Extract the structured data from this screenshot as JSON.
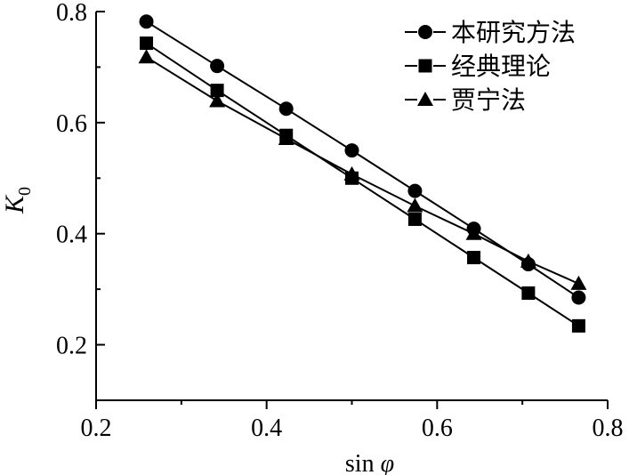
{
  "chart_data": {
    "type": "line",
    "title": "",
    "xlabel": {
      "prefix": "sin ",
      "symbol": "φ"
    },
    "ylabel": {
      "symbol": "K",
      "subscript": "0"
    },
    "xlim": [
      0.2,
      0.8
    ],
    "ylim": [
      0.1,
      0.8
    ],
    "xticks": [
      0.2,
      0.4,
      0.6,
      0.8
    ],
    "yticks": [
      0.2,
      0.4,
      0.6,
      0.8
    ],
    "x_minor_ticks": [
      0.3,
      0.5,
      0.7
    ],
    "y_minor_ticks": [
      0.1,
      0.3,
      0.5,
      0.7
    ],
    "legend_position": "top-right",
    "x": [
      0.259,
      0.342,
      0.423,
      0.5,
      0.574,
      0.643,
      0.707,
      0.766
    ],
    "series": [
      {
        "name": "本研究方法",
        "marker": "circle",
        "values": [
          0.782,
          0.702,
          0.625,
          0.55,
          0.477,
          0.409,
          0.345,
          0.285
        ]
      },
      {
        "name": "经典理论",
        "marker": "square",
        "values": [
          0.743,
          0.658,
          0.577,
          0.5,
          0.426,
          0.357,
          0.293,
          0.234
        ]
      },
      {
        "name": "贾宁法",
        "marker": "triangle",
        "values": [
          0.718,
          0.639,
          0.571,
          0.507,
          0.45,
          0.4,
          0.35,
          0.31
        ]
      }
    ]
  }
}
